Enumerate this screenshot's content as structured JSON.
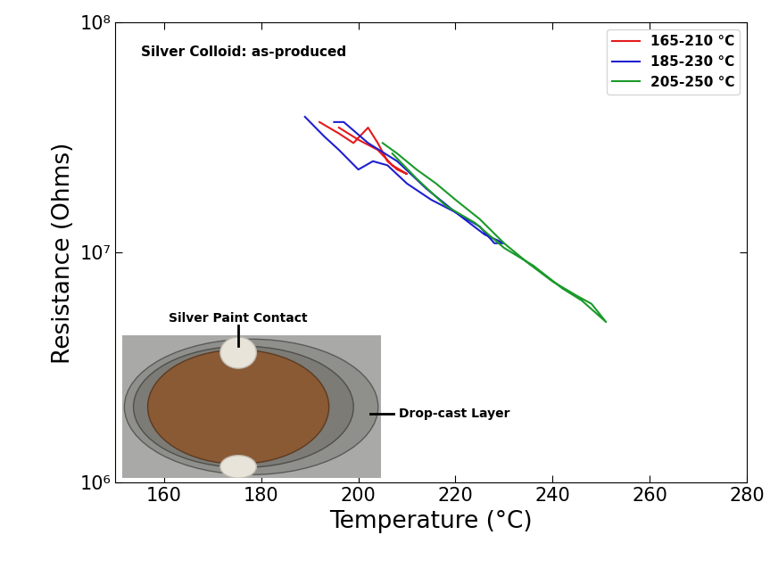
{
  "chart_data": {
    "type": "line",
    "annotations": [
      "Silver Colloid: as-produced"
    ],
    "inset": {
      "labels": [
        "Silver Paint Contact",
        "Drop-cast Layer"
      ]
    },
    "x_label": "Temperature (°C)",
    "y_label": "Resistance (Ohms)",
    "log": "y",
    "legend": "upper right",
    "xlim": [
      150,
      280
    ],
    "xticks": [
      160,
      180,
      200,
      220,
      240,
      260,
      280
    ],
    "ylim": [
      1000000,
      100000000
    ],
    "yticks": [
      {
        "value": 1000000,
        "label": "10⁶"
      },
      {
        "value": 10000000,
        "label": "10⁷"
      },
      {
        "value": 100000000,
        "label": "10⁸"
      }
    ],
    "series": [
      {
        "name": "165-210 °C",
        "color": "#e31a1c",
        "x": [
          192,
          196,
          199,
          202,
          204,
          206,
          208,
          210,
          207,
          204,
          200,
          196
        ],
        "values": [
          37000000,
          33000000,
          30000000,
          35000000,
          30000000,
          25000000,
          23000000,
          22000000,
          24000000,
          28000000,
          31000000,
          35000000
        ]
      },
      {
        "name": "185-230 °C",
        "color": "#1f1fd0",
        "x": [
          189,
          193,
          196,
          200,
          203,
          206,
          210,
          215,
          220,
          225,
          228,
          230,
          226,
          220,
          214,
          208,
          202,
          197,
          195
        ],
        "values": [
          39000000,
          32000000,
          28000000,
          23000000,
          25000000,
          24000000,
          20000000,
          17000000,
          15000000,
          13000000,
          11000000,
          11000000,
          12000000,
          15000000,
          19000000,
          25000000,
          30000000,
          37000000,
          37000000
        ]
      },
      {
        "name": "205-250 °C",
        "color": "#1a9a2a",
        "x": [
          205,
          208,
          212,
          216,
          220,
          225,
          230,
          235,
          240,
          245,
          248,
          251,
          246,
          242,
          236,
          230,
          224,
          218,
          212,
          207
        ],
        "values": [
          30000000,
          27000000,
          23000000,
          20000000,
          17000000,
          14000000,
          11000000,
          9000000,
          7500000,
          6500000,
          6000000,
          5000000,
          6200000,
          7000000,
          8800000,
          10500000,
          13500000,
          16000000,
          21000000,
          27000000
        ]
      }
    ]
  }
}
